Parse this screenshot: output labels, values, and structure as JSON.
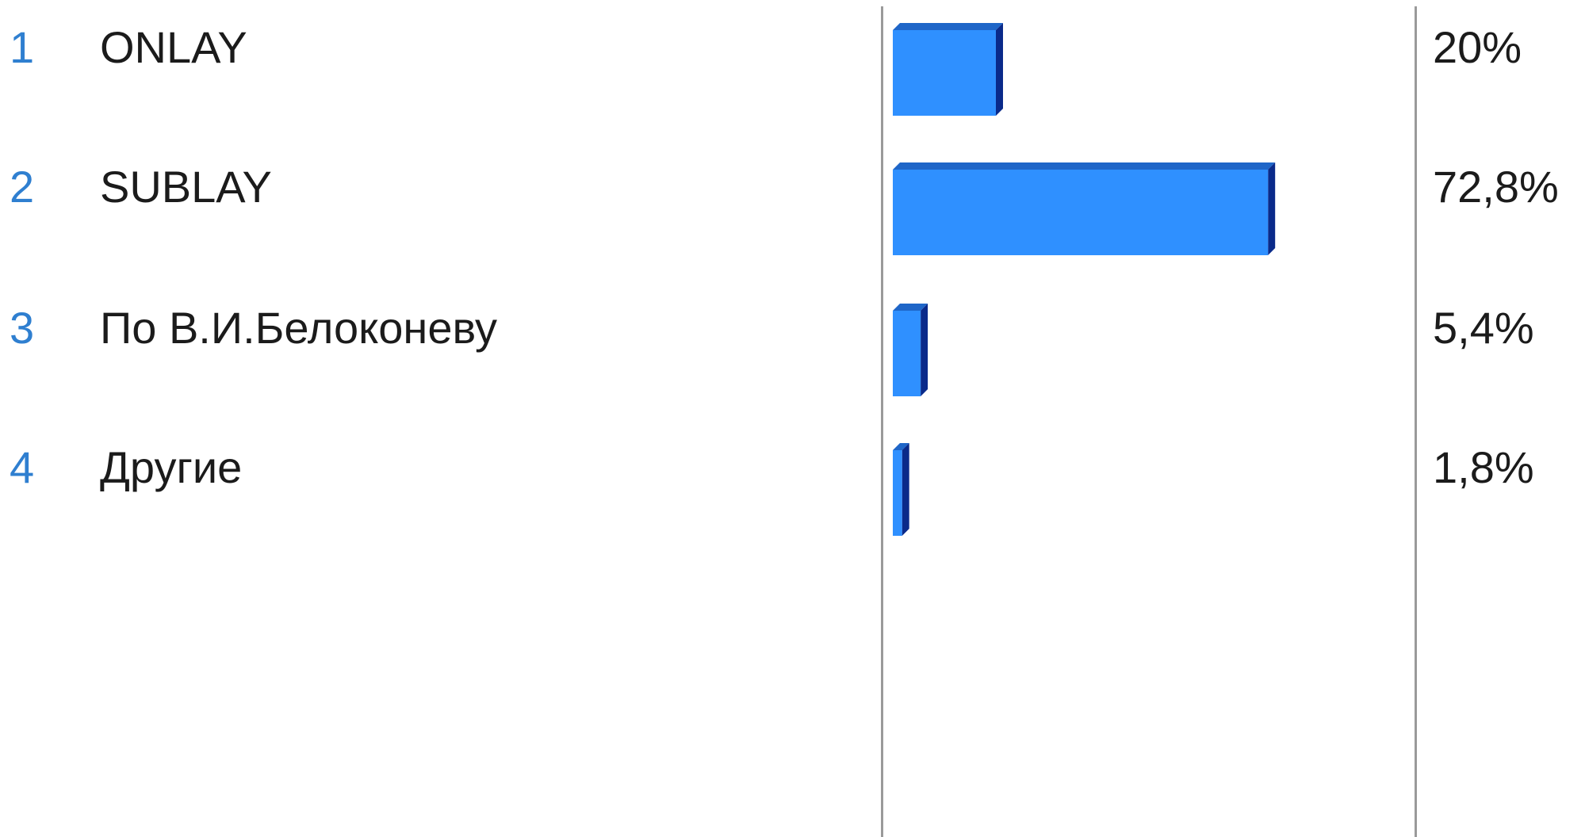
{
  "chart_data": {
    "type": "bar",
    "orientation": "horizontal",
    "categories": [
      "ONLAY",
      "SUBLAY",
      "По В.И.Белоконеву",
      "Другие"
    ],
    "numbers": [
      "1",
      "2",
      "3",
      "4"
    ],
    "values": [
      20,
      72.8,
      5.4,
      1.8
    ],
    "value_labels": [
      "20%",
      "72,8%",
      "5,4%",
      "1,8%"
    ],
    "title": "",
    "xlabel": "",
    "ylabel": "",
    "xlim": [
      0,
      100
    ],
    "grid": false,
    "legend": "none",
    "colors": {
      "bar_face": "#2f90ff",
      "bar_top": "#1f66c8",
      "bar_side": "#0a2a8a",
      "number_text": "#2f7fd0",
      "label_text": "#1b1b1b",
      "divider": "#9a9a9a"
    }
  }
}
